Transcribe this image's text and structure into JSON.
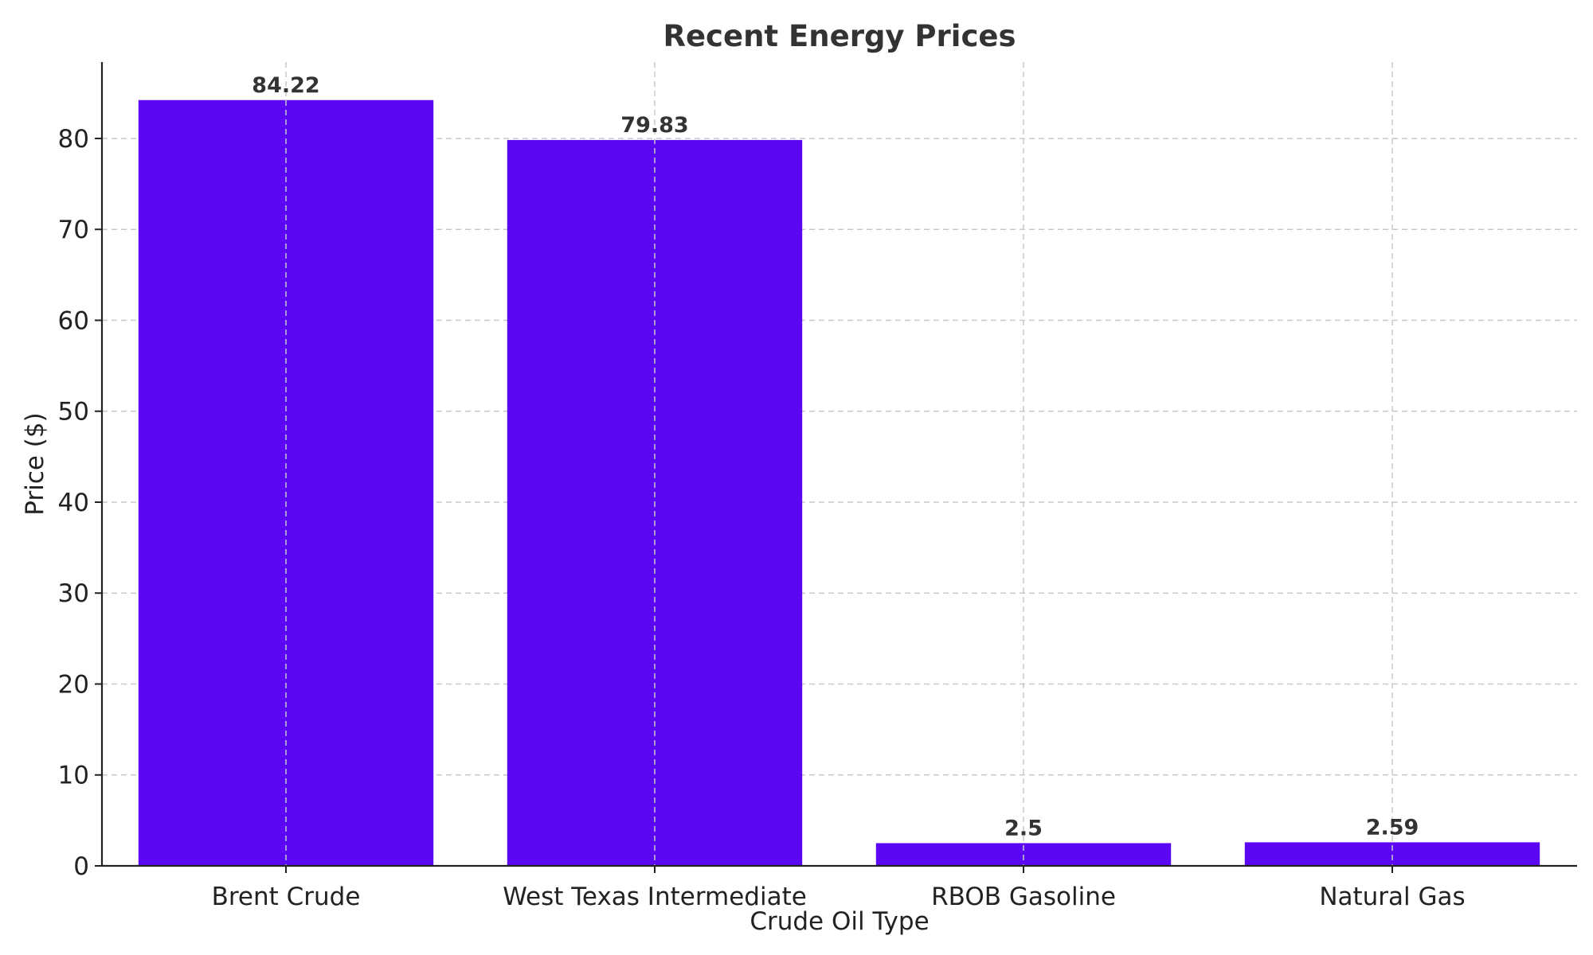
{
  "chart_data": {
    "type": "bar",
    "title": "Recent Energy Prices",
    "xlabel": "Crude Oil Type",
    "ylabel": "Price ($)",
    "categories": [
      "Brent Crude",
      "West Texas Intermediate",
      "RBOB Gasoline",
      "Natural Gas"
    ],
    "values": [
      84.22,
      79.83,
      2.5,
      2.59
    ],
    "value_labels": [
      "84.22",
      "79.83",
      "2.5",
      "2.59"
    ],
    "ylim": [
      0,
      88.4
    ],
    "yticks": [
      0,
      10,
      20,
      30,
      40,
      50,
      60,
      70,
      80
    ],
    "ytick_labels": [
      "0",
      "10",
      "20",
      "30",
      "40",
      "50",
      "60",
      "70",
      "80"
    ],
    "grid": true,
    "bar_color": "#5b06f5"
  }
}
